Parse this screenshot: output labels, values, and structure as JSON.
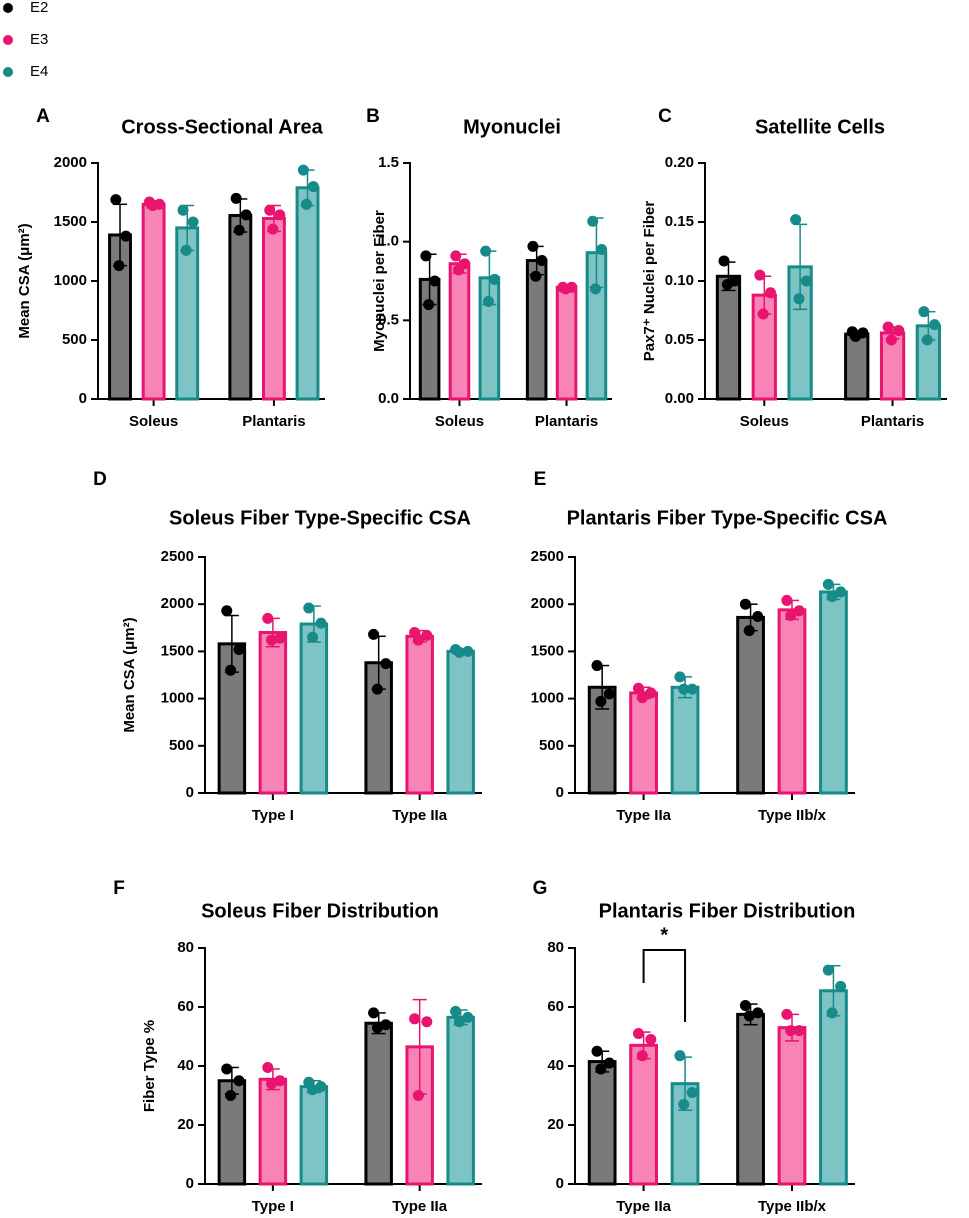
{
  "chart_data": [
    {
      "type": "bar",
      "panel": "A",
      "title": "Cross-Sectional Area",
      "ylabel": "Mean CSA (μm²)",
      "categories": [
        "Soleus",
        "Plantaris"
      ],
      "ylim": [
        0,
        2000
      ],
      "yticks": [
        0,
        500,
        1000,
        1500,
        2000
      ],
      "series": [
        {
          "name": "E2",
          "color": "#000000",
          "fill": "#7a7a7a",
          "values": [
            1390,
            1555
          ],
          "errors": [
            260,
            140
          ],
          "points": [
            [
              1690,
              1380,
              1130
            ],
            [
              1700,
              1560,
              1430
            ]
          ]
        },
        {
          "name": "E3",
          "color": "#e8146f",
          "fill": "#f784b4",
          "values": [
            1650,
            1530
          ],
          "errors": [
            30,
            110
          ],
          "points": [
            [
              1670,
              1650,
              1640
            ],
            [
              1600,
              1560,
              1440
            ]
          ]
        },
        {
          "name": "E4",
          "color": "#178a8a",
          "fill": "#7fc4c4",
          "values": [
            1450,
            1790
          ],
          "errors": [
            190,
            150
          ],
          "points": [
            [
              1600,
              1500,
              1260
            ],
            [
              1940,
              1800,
              1650
            ]
          ]
        }
      ]
    },
    {
      "type": "bar",
      "panel": "B",
      "title": "Myonuclei",
      "ylabel": "Myonuclei per Fiber",
      "categories": [
        "Soleus",
        "Plantaris"
      ],
      "ylim": [
        0,
        1.5
      ],
      "yticks": [
        {
          "value": 0,
          "label": "0.0"
        },
        0.5,
        {
          "value": 1,
          "label": "1.0"
        },
        1.5
      ],
      "series": [
        {
          "name": "E2",
          "color": "#000000",
          "fill": "#7a7a7a",
          "values": [
            0.76,
            0.88
          ],
          "errors": [
            0.16,
            0.09
          ],
          "points": [
            [
              0.91,
              0.75,
              0.6
            ],
            [
              0.97,
              0.88,
              0.78
            ]
          ]
        },
        {
          "name": "E3",
          "color": "#e8146f",
          "fill": "#f784b4",
          "values": [
            0.86,
            0.71
          ],
          "errors": [
            0.06,
            0.01
          ],
          "points": [
            [
              0.91,
              0.86,
              0.82
            ],
            [
              0.71,
              0.71,
              0.7
            ]
          ]
        },
        {
          "name": "E4",
          "color": "#178a8a",
          "fill": "#7fc4c4",
          "values": [
            0.77,
            0.93
          ],
          "errors": [
            0.17,
            0.22
          ],
          "points": [
            [
              0.94,
              0.76,
              0.62
            ],
            [
              1.13,
              0.95,
              0.7
            ]
          ]
        }
      ]
    },
    {
      "type": "bar",
      "panel": "C",
      "title": "Satellite Cells",
      "ylabel": "Pax7⁺ Nuclei per Fiber",
      "categories": [
        "Soleus",
        "Plantaris"
      ],
      "ylim": [
        0,
        0.2
      ],
      "yticks": [
        {
          "value": 0,
          "label": "0.00"
        },
        0.05,
        {
          "value": 0.1,
          "label": "0.10"
        },
        0.15,
        {
          "value": 0.2,
          "label": "0.20"
        }
      ],
      "series": [
        {
          "name": "E2",
          "color": "#000000",
          "fill": "#7a7a7a",
          "values": [
            0.104,
            0.055
          ],
          "errors": [
            0.012,
            0.003
          ],
          "points": [
            [
              0.117,
              0.1,
              0.097
            ],
            [
              0.057,
              0.056,
              0.053
            ]
          ]
        },
        {
          "name": "E3",
          "color": "#e8146f",
          "fill": "#f784b4",
          "values": [
            0.088,
            0.056
          ],
          "errors": [
            0.016,
            0.005
          ],
          "points": [
            [
              0.105,
              0.09,
              0.072
            ],
            [
              0.061,
              0.058,
              0.05
            ]
          ]
        },
        {
          "name": "E4",
          "color": "#178a8a",
          "fill": "#7fc4c4",
          "values": [
            0.112,
            0.062
          ],
          "errors": [
            0.036,
            0.012
          ],
          "points": [
            [
              0.152,
              0.1,
              0.085
            ],
            [
              0.074,
              0.063,
              0.05
            ]
          ]
        }
      ]
    },
    {
      "type": "bar",
      "panel": "D",
      "title": "Soleus Fiber Type-Specific CSA",
      "ylabel": "Mean CSA (μm²)",
      "categories": [
        "Type I",
        "Type IIa"
      ],
      "ylim": [
        0,
        2500
      ],
      "yticks": [
        0,
        500,
        1000,
        1500,
        2000,
        2500
      ],
      "series": [
        {
          "name": "E2",
          "color": "#000000",
          "fill": "#7a7a7a",
          "values": [
            1580,
            1380
          ],
          "errors": [
            300,
            280
          ],
          "points": [
            [
              1930,
              1520,
              1300
            ],
            [
              1680,
              1370,
              1100
            ]
          ]
        },
        {
          "name": "E3",
          "color": "#e8146f",
          "fill": "#f784b4",
          "values": [
            1700,
            1660
          ],
          "errors": [
            150,
            60
          ],
          "points": [
            [
              1850,
              1640,
              1620
            ],
            [
              1700,
              1670,
              1620
            ]
          ]
        },
        {
          "name": "E4",
          "color": "#178a8a",
          "fill": "#7fc4c4",
          "values": [
            1790,
            1500
          ],
          "errors": [
            190,
            20
          ],
          "points": [
            [
              1960,
              1800,
              1650
            ],
            [
              1520,
              1500,
              1490
            ]
          ]
        }
      ]
    },
    {
      "type": "bar",
      "panel": "E",
      "title": "Plantaris Fiber Type-Specific CSA",
      "categories": [
        "Type IIa",
        "Type IIb/x"
      ],
      "ylim": [
        0,
        2500
      ],
      "yticks": [
        0,
        500,
        1000,
        1500,
        2000,
        2500
      ],
      "series": [
        {
          "name": "E2",
          "color": "#000000",
          "fill": "#7a7a7a",
          "values": [
            1120,
            1860
          ],
          "errors": [
            230,
            140
          ],
          "points": [
            [
              1350,
              1050,
              970
            ],
            [
              2000,
              1870,
              1720
            ]
          ]
        },
        {
          "name": "E3",
          "color": "#e8146f",
          "fill": "#f784b4",
          "values": [
            1060,
            1940
          ],
          "errors": [
            60,
            100
          ],
          "points": [
            [
              1110,
              1060,
              1010
            ],
            [
              2040,
              1930,
              1880
            ]
          ]
        },
        {
          "name": "E4",
          "color": "#178a8a",
          "fill": "#7fc4c4",
          "values": [
            1120,
            2130
          ],
          "errors": [
            110,
            80
          ],
          "points": [
            [
              1230,
              1100,
              1100
            ],
            [
              2210,
              2130,
              2080
            ]
          ]
        }
      ]
    },
    {
      "type": "bar",
      "panel": "F",
      "title": "Soleus Fiber Distribution",
      "ylabel": "Fiber Type %",
      "categories": [
        "Type I",
        "Type IIa"
      ],
      "ylim": [
        0,
        80
      ],
      "yticks": [
        0,
        20,
        40,
        60,
        80
      ],
      "series": [
        {
          "name": "E2",
          "color": "#000000",
          "fill": "#7a7a7a",
          "values": [
            35,
            54.5
          ],
          "errors": [
            4.5,
            3.5
          ],
          "points": [
            [
              39,
              35,
              30
            ],
            [
              58,
              54,
              53
            ]
          ]
        },
        {
          "name": "E3",
          "color": "#e8146f",
          "fill": "#f784b4",
          "values": [
            35.5,
            46.5
          ],
          "errors": [
            3.5,
            16
          ],
          "points": [
            [
              39.5,
              35,
              34
            ],
            [
              56,
              55,
              30
            ]
          ]
        },
        {
          "name": "E4",
          "color": "#178a8a",
          "fill": "#7fc4c4",
          "values": [
            33,
            56.5
          ],
          "errors": [
            2,
            2.5
          ],
          "points": [
            [
              34.5,
              33,
              32
            ],
            [
              58.5,
              56.5,
              55
            ]
          ]
        }
      ]
    },
    {
      "type": "bar",
      "panel": "G",
      "title": "Plantaris Fiber Distribution",
      "categories": [
        "Type IIa",
        "Type IIb/x"
      ],
      "ylim": [
        0,
        80
      ],
      "yticks": [
        0,
        20,
        40,
        60,
        80
      ],
      "annotation": "*",
      "series": [
        {
          "name": "E2",
          "color": "#000000",
          "fill": "#7a7a7a",
          "values": [
            41.5,
            57.5
          ],
          "errors": [
            3.5,
            3.5
          ],
          "points": [
            [
              45,
              41,
              39
            ],
            [
              60.5,
              58,
              57
            ]
          ]
        },
        {
          "name": "E3",
          "color": "#e8146f",
          "fill": "#f784b4",
          "values": [
            47,
            53
          ],
          "errors": [
            4.5,
            4.5
          ],
          "points": [
            [
              51,
              49,
              43.5
            ],
            [
              57.5,
              52,
              52
            ]
          ]
        },
        {
          "name": "E4",
          "color": "#178a8a",
          "fill": "#7fc4c4",
          "values": [
            34,
            65.5
          ],
          "errors": [
            9,
            8.5
          ],
          "points": [
            [
              43.5,
              31,
              27
            ],
            [
              72.5,
              67,
              58
            ]
          ]
        }
      ]
    }
  ]
}
